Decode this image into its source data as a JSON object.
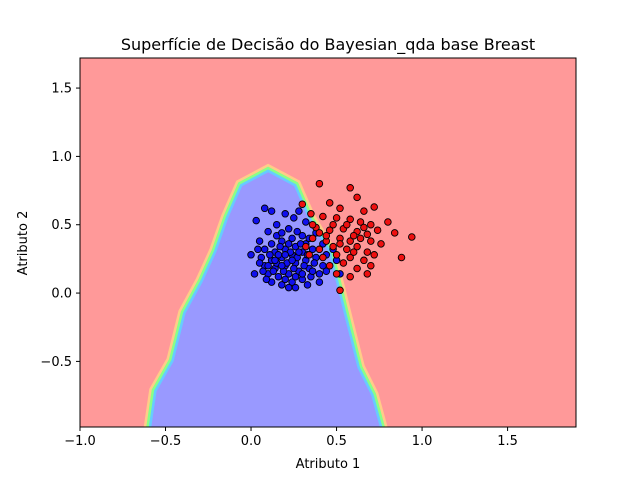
{
  "chart_data": {
    "type": "scatter",
    "title": "Superfície de Decisão do Bayesian_qda base Breast",
    "xlabel": "Atributo 1",
    "ylabel": "Atributo 2",
    "xlim": [
      -1.0,
      1.9
    ],
    "ylim": [
      -0.98,
      1.72
    ],
    "xticks": [
      -1.0,
      -0.5,
      0.0,
      0.5,
      1.0,
      1.5
    ],
    "xtick_labels": [
      "−1.0",
      "−0.5",
      "0.0",
      "0.5",
      "1.0",
      "1.5"
    ],
    "yticks": [
      -0.5,
      0.0,
      0.5,
      1.0,
      1.5
    ],
    "ytick_labels": [
      "−0.5",
      "0.0",
      "0.5",
      "1.0",
      "1.5"
    ],
    "grid": false,
    "background_region_color": "#ff9999",
    "decision_region": {
      "color": "#9999ff",
      "boundary_band_colors": [
        "#ffcc88",
        "#88ff88",
        "#66ccff"
      ],
      "apex": [
        0.1,
        0.88
      ],
      "left_edge": [
        [
          0.1,
          0.88
        ],
        [
          -0.05,
          0.78
        ],
        [
          -0.13,
          0.55
        ],
        [
          -0.2,
          0.3
        ],
        [
          -0.28,
          0.08
        ],
        [
          -0.38,
          -0.15
        ],
        [
          -0.45,
          -0.5
        ],
        [
          -0.55,
          -0.72
        ],
        [
          -0.58,
          -0.98
        ]
      ],
      "right_edge": [
        [
          0.1,
          0.88
        ],
        [
          0.25,
          0.78
        ],
        [
          0.33,
          0.55
        ],
        [
          0.45,
          0.3
        ],
        [
          0.5,
          0.05
        ],
        [
          0.55,
          -0.2
        ],
        [
          0.62,
          -0.55
        ],
        [
          0.7,
          -0.75
        ],
        [
          0.75,
          -0.98
        ]
      ]
    },
    "series": [
      {
        "color": "#1010ee",
        "points": [
          [
            0.08,
            0.62
          ],
          [
            0.12,
            0.6
          ],
          [
            0.2,
            0.58
          ],
          [
            0.25,
            0.55
          ],
          [
            0.03,
            0.53
          ],
          [
            0.28,
            0.6
          ],
          [
            0.15,
            0.5
          ],
          [
            0.32,
            0.52
          ],
          [
            0.1,
            0.45
          ],
          [
            0.22,
            0.47
          ],
          [
            0.05,
            0.38
          ],
          [
            0.12,
            0.36
          ],
          [
            0.18,
            0.38
          ],
          [
            0.24,
            0.4
          ],
          [
            0.3,
            0.42
          ],
          [
            0.08,
            0.32
          ],
          [
            0.14,
            0.3
          ],
          [
            0.2,
            0.32
          ],
          [
            0.26,
            0.34
          ],
          [
            0.32,
            0.36
          ],
          [
            0.06,
            0.26
          ],
          [
            0.12,
            0.24
          ],
          [
            0.18,
            0.26
          ],
          [
            0.24,
            0.28
          ],
          [
            0.3,
            0.3
          ],
          [
            0.36,
            0.32
          ],
          [
            0.08,
            0.2
          ],
          [
            0.14,
            0.18
          ],
          [
            0.2,
            0.2
          ],
          [
            0.26,
            0.22
          ],
          [
            0.32,
            0.24
          ],
          [
            0.38,
            0.26
          ],
          [
            0.1,
            0.14
          ],
          [
            0.16,
            0.12
          ],
          [
            0.22,
            0.14
          ],
          [
            0.28,
            0.16
          ],
          [
            0.34,
            0.18
          ],
          [
            0.12,
            0.08
          ],
          [
            0.18,
            0.06
          ],
          [
            0.24,
            0.08
          ],
          [
            0.3,
            0.1
          ],
          [
            0.22,
            0.04
          ],
          [
            0.02,
            0.14
          ],
          [
            0.0,
            0.28
          ],
          [
            0.05,
            0.22
          ],
          [
            0.35,
            0.12
          ],
          [
            0.42,
            0.2
          ],
          [
            0.4,
            0.14
          ],
          [
            0.15,
            0.42
          ],
          [
            0.27,
            0.45
          ],
          [
            0.17,
            0.34
          ],
          [
            0.23,
            0.3
          ],
          [
            0.29,
            0.36
          ],
          [
            0.11,
            0.28
          ],
          [
            0.21,
            0.22
          ],
          [
            0.27,
            0.26
          ],
          [
            0.33,
            0.28
          ],
          [
            0.15,
            0.22
          ],
          [
            0.19,
            0.16
          ],
          [
            0.25,
            0.18
          ],
          [
            0.31,
            0.2
          ],
          [
            0.13,
            0.16
          ],
          [
            0.37,
            0.22
          ],
          [
            0.09,
            0.1
          ],
          [
            0.26,
            0.12
          ],
          [
            0.2,
            0.1
          ],
          [
            0.16,
            0.28
          ],
          [
            0.22,
            0.36
          ],
          [
            0.34,
            0.4
          ],
          [
            0.42,
            0.36
          ],
          [
            0.44,
            0.28
          ],
          [
            0.5,
            0.24
          ],
          [
            0.52,
            0.14
          ],
          [
            0.48,
            0.32
          ],
          [
            0.38,
            0.44
          ],
          [
            0.18,
            0.44
          ],
          [
            0.04,
            0.32
          ],
          [
            0.07,
            0.16
          ],
          [
            0.33,
            0.06
          ],
          [
            0.26,
            0.04
          ],
          [
            0.44,
            0.16
          ],
          [
            0.4,
            0.08
          ],
          [
            0.2,
            0.28
          ],
          [
            0.24,
            0.24
          ],
          [
            0.28,
            0.3
          ],
          [
            0.14,
            0.24
          ],
          [
            0.18,
            0.2
          ],
          [
            0.3,
            0.14
          ],
          [
            0.36,
            0.16
          ],
          [
            0.1,
            0.2
          ]
        ]
      },
      {
        "color": "#ee1010",
        "points": [
          [
            0.4,
            0.8
          ],
          [
            0.58,
            0.77
          ],
          [
            0.3,
            0.65
          ],
          [
            0.46,
            0.66
          ],
          [
            0.62,
            0.7
          ],
          [
            0.52,
            0.62
          ],
          [
            0.66,
            0.6
          ],
          [
            0.72,
            0.63
          ],
          [
            0.35,
            0.58
          ],
          [
            0.42,
            0.56
          ],
          [
            0.5,
            0.55
          ],
          [
            0.58,
            0.54
          ],
          [
            0.64,
            0.52
          ],
          [
            0.7,
            0.5
          ],
          [
            0.8,
            0.52
          ],
          [
            0.38,
            0.48
          ],
          [
            0.46,
            0.46
          ],
          [
            0.54,
            0.47
          ],
          [
            0.62,
            0.45
          ],
          [
            0.68,
            0.43
          ],
          [
            0.74,
            0.46
          ],
          [
            0.84,
            0.44
          ],
          [
            0.36,
            0.4
          ],
          [
            0.44,
            0.38
          ],
          [
            0.52,
            0.4
          ],
          [
            0.58,
            0.38
          ],
          [
            0.64,
            0.4
          ],
          [
            0.7,
            0.38
          ],
          [
            0.76,
            0.36
          ],
          [
            0.94,
            0.41
          ],
          [
            0.32,
            0.34
          ],
          [
            0.4,
            0.32
          ],
          [
            0.48,
            0.34
          ],
          [
            0.56,
            0.32
          ],
          [
            0.62,
            0.34
          ],
          [
            0.68,
            0.3
          ],
          [
            0.34,
            0.28
          ],
          [
            0.42,
            0.26
          ],
          [
            0.5,
            0.28
          ],
          [
            0.58,
            0.26
          ],
          [
            0.66,
            0.24
          ],
          [
            0.72,
            0.28
          ],
          [
            0.88,
            0.26
          ],
          [
            0.46,
            0.2
          ],
          [
            0.54,
            0.22
          ],
          [
            0.62,
            0.18
          ],
          [
            0.7,
            0.2
          ],
          [
            0.5,
            0.14
          ],
          [
            0.58,
            0.12
          ],
          [
            0.68,
            0.14
          ],
          [
            0.52,
            0.02
          ],
          [
            0.44,
            0.42
          ],
          [
            0.6,
            0.42
          ],
          [
            0.48,
            0.5
          ],
          [
            0.56,
            0.5
          ],
          [
            0.66,
            0.48
          ],
          [
            0.4,
            0.44
          ],
          [
            0.52,
            0.36
          ],
          [
            0.6,
            0.3
          ],
          [
            0.36,
            0.5
          ]
        ]
      }
    ]
  }
}
